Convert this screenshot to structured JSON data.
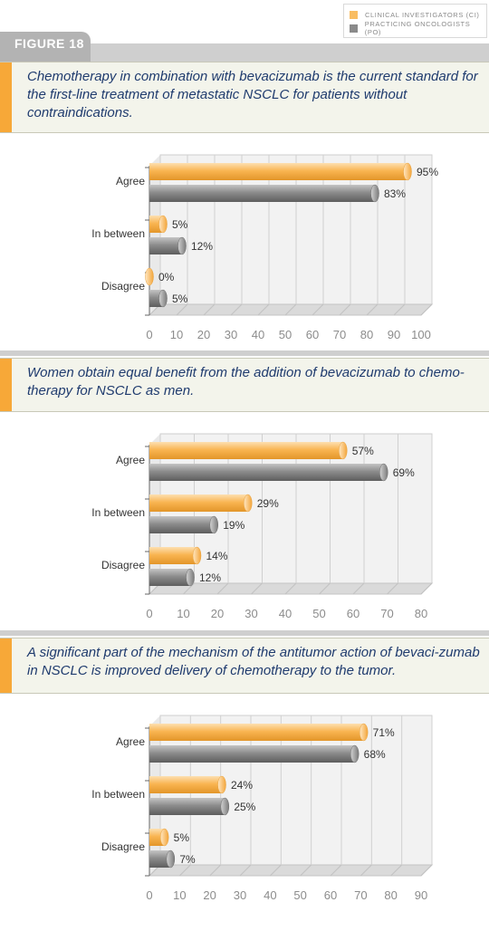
{
  "legend": {
    "ci_label": "CLINICAL INVESTIGATORS (CI)",
    "po_label": "PRACTICING ONCOLOGISTS (PO)",
    "ci_color": "#f9bd62",
    "po_color": "#8a8a8a"
  },
  "figure_label": "FIGURE 18",
  "panels": [
    "Chemotherapy in combination with bevacizumab is the current standard for the first-line treatment of metastatic NSCLC for patients without contraindications.",
    "Women obtain equal benefit from the addition of bevacizumab to chemo-therapy for NSCLC as men.",
    "A significant part of the mechanism of the antitumor action of bevaci-zumab in NSCLC is improved delivery of chemotherapy to the tumor."
  ],
  "chart_data": [
    {
      "type": "bar",
      "orientation": "horizontal",
      "categories": [
        "Agree",
        "In between",
        "Disagree"
      ],
      "series": [
        {
          "name": "CLINICAL INVESTIGATORS (CI)",
          "values": [
            95,
            5,
            0
          ]
        },
        {
          "name": "PRACTICING ONCOLOGISTS (PO)",
          "values": [
            83,
            12,
            5
          ]
        }
      ],
      "xlim": [
        0,
        100
      ],
      "xticks": [
        "0",
        "10",
        "20",
        "30",
        "40",
        "50",
        "60",
        "70",
        "80",
        "90",
        "100"
      ]
    },
    {
      "type": "bar",
      "orientation": "horizontal",
      "categories": [
        "Agree",
        "In between",
        "Disagree"
      ],
      "series": [
        {
          "name": "CLINICAL INVESTIGATORS (CI)",
          "values": [
            57,
            29,
            14
          ]
        },
        {
          "name": "PRACTICING ONCOLOGISTS (PO)",
          "values": [
            69,
            19,
            12
          ]
        }
      ],
      "xlim": [
        0,
        80
      ],
      "xticks": [
        "0",
        "10",
        "20",
        "30",
        "40",
        "50",
        "60",
        "70",
        "80"
      ]
    },
    {
      "type": "bar",
      "orientation": "horizontal",
      "categories": [
        "Agree",
        "In between",
        "Disagree"
      ],
      "series": [
        {
          "name": "CLINICAL INVESTIGATORS (CI)",
          "values": [
            71,
            24,
            5
          ]
        },
        {
          "name": "PRACTICING ONCOLOGISTS (PO)",
          "values": [
            68,
            25,
            7
          ]
        }
      ],
      "xlim": [
        0,
        90
      ],
      "xticks": [
        "0",
        "10",
        "20",
        "30",
        "40",
        "50",
        "60",
        "70",
        "80",
        "90"
      ]
    }
  ]
}
